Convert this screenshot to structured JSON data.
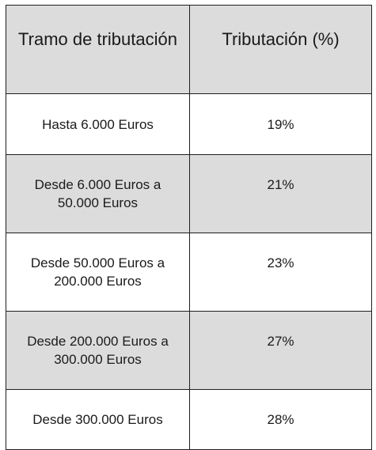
{
  "table": {
    "headers": {
      "bracket": "Tramo de tributación",
      "rate": "Tributación (%)"
    },
    "rows": [
      {
        "bracket": "Hasta 6.000 Euros",
        "rate": "19%"
      },
      {
        "bracket": "Desde 6.000 Euros a 50.000 Euros",
        "rate": "21%"
      },
      {
        "bracket": "Desde 50.000 Euros a 200.000 Euros",
        "rate": "23%"
      },
      {
        "bracket": "Desde 200.000 Euros a 300.000 Euros",
        "rate": "27%"
      },
      {
        "bracket": "Desde 300.000 Euros",
        "rate": "28%"
      }
    ]
  }
}
